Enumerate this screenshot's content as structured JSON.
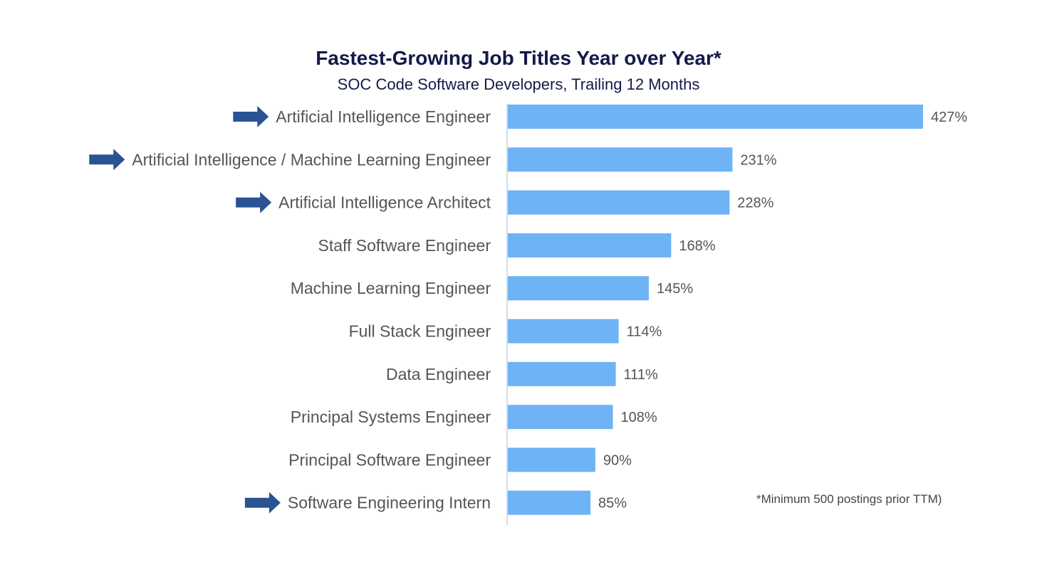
{
  "chart_data": {
    "type": "bar",
    "orientation": "horizontal",
    "title": "Fastest-Growing Job Titles Year over Year*",
    "subtitle": "SOC Code Software Developers, Trailing 12 Months",
    "categories": [
      "Artificial Intelligence Engineer",
      "Artificial Intelligence / Machine Learning Engineer",
      "Artificial Intelligence Architect",
      "Staff Software Engineer",
      "Machine Learning Engineer",
      "Full Stack Engineer",
      "Data Engineer",
      "Principal Systems Engineer",
      "Principal Software Engineer",
      "Software Engineering Intern"
    ],
    "values": [
      427,
      231,
      228,
      168,
      145,
      114,
      111,
      108,
      90,
      85
    ],
    "value_labels": [
      "427%",
      "231%",
      "228%",
      "168%",
      "145%",
      "114%",
      "111%",
      "108%",
      "90%",
      "85%"
    ],
    "highlighted": [
      true,
      true,
      true,
      false,
      false,
      false,
      false,
      false,
      false,
      true
    ],
    "xlim": [
      0,
      427
    ],
    "grid": false,
    "legend": "none",
    "footnote": "*Minimum 500 postings prior TTM)"
  },
  "colors": {
    "bar": "#6db3f5",
    "arrow": "#2a5394",
    "title": "#14194a",
    "axis": "#c7cfe0",
    "text": "#555555"
  },
  "icons": {
    "highlight": "arrow-right-icon"
  }
}
